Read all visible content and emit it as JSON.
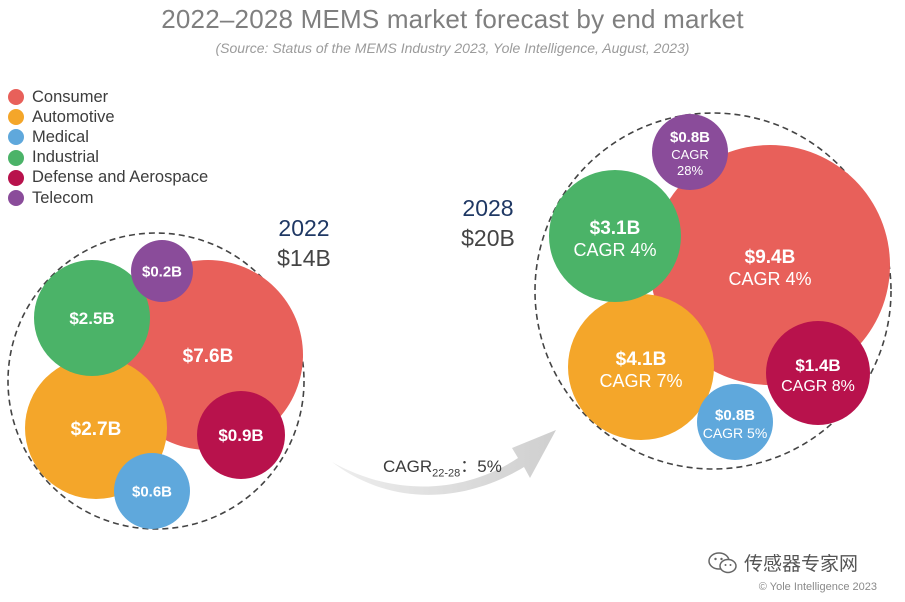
{
  "chart_data": {
    "type": "bubble",
    "title": "2022–2028 MEMS market forecast by end market",
    "subtitle": "(Source: Status of the MEMS Industry 2023, Yole Intelligence, August, 2023)",
    "legend": [
      {
        "name": "Consumer",
        "color": "#e8605a"
      },
      {
        "name": "Automotive",
        "color": "#f4a62a"
      },
      {
        "name": "Medical",
        "color": "#5fa8dc"
      },
      {
        "name": "Industrial",
        "color": "#4bb368"
      },
      {
        "name": "Defense and Aerospace",
        "color": "#b8124c"
      },
      {
        "name": "Telecom",
        "color": "#8a4c9a"
      }
    ],
    "series": [
      {
        "year": "2022",
        "total": "$14B",
        "values": [
          {
            "segment": "Consumer",
            "value": 7.6,
            "label": "$7.6B"
          },
          {
            "segment": "Automotive",
            "value": 2.7,
            "label": "$2.7B"
          },
          {
            "segment": "Medical",
            "value": 0.6,
            "label": "$0.6B"
          },
          {
            "segment": "Industrial",
            "value": 2.5,
            "label": "$2.5B"
          },
          {
            "segment": "Defense and Aerospace",
            "value": 0.9,
            "label": "$0.9B"
          },
          {
            "segment": "Telecom",
            "value": 0.2,
            "label": "$0.2B"
          }
        ]
      },
      {
        "year": "2028",
        "total": "$20B",
        "values": [
          {
            "segment": "Consumer",
            "value": 9.4,
            "label": "$9.4B",
            "cagr": "CAGR 4%"
          },
          {
            "segment": "Automotive",
            "value": 4.1,
            "label": "$4.1B",
            "cagr": "CAGR 7%"
          },
          {
            "segment": "Medical",
            "value": 0.8,
            "label": "$0.8B",
            "cagr": "CAGR 5%"
          },
          {
            "segment": "Industrial",
            "value": 3.1,
            "label": "$3.1B",
            "cagr": "CAGR 4%"
          },
          {
            "segment": "Defense and Aerospace",
            "value": 1.4,
            "label": "$1.4B",
            "cagr": "CAGR 8%"
          },
          {
            "segment": "Telecom",
            "value": 0.8,
            "label": "$0.8B",
            "cagr": "CAGR 28%"
          }
        ]
      }
    ],
    "overall_cagr": {
      "prefix": "CAGR",
      "subscript": "22-28",
      "suffix": "：5%"
    }
  },
  "watermark": "传感器专家网",
  "copyright": "© Yole Intelligence 2023"
}
